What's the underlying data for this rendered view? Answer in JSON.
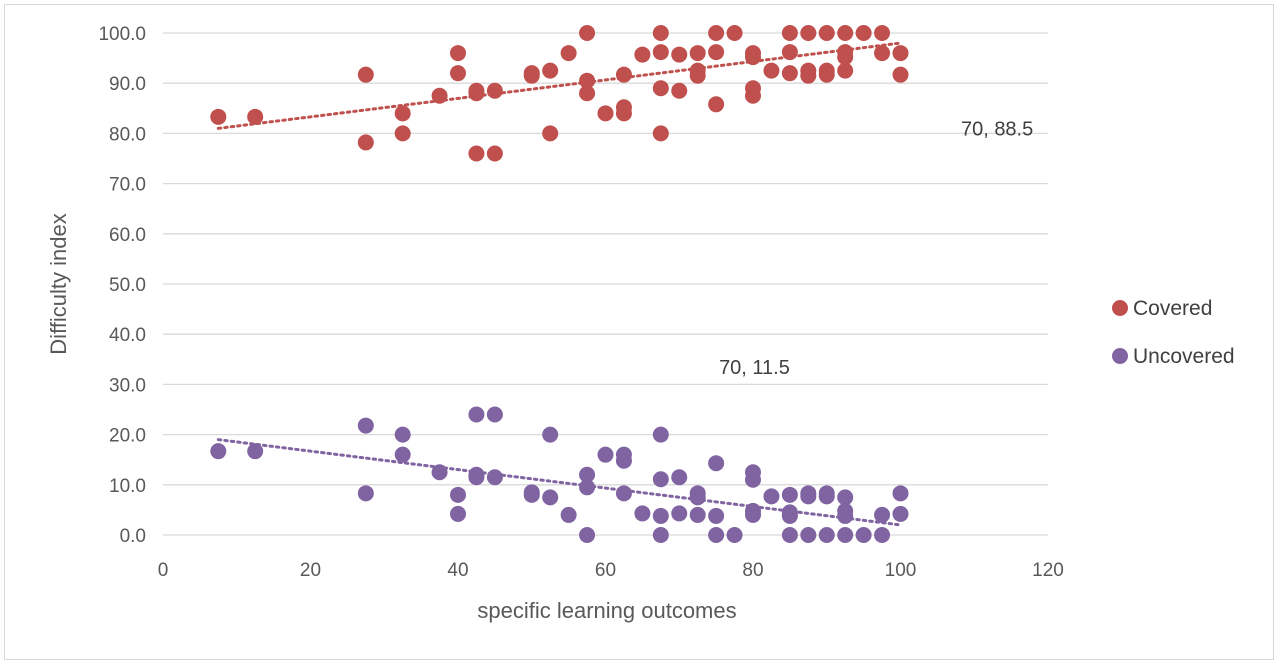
{
  "chart_data": {
    "type": "scatter",
    "title": "",
    "xlabel": "specific learning outcomes",
    "ylabel": "Difficulty index",
    "xlim": [
      0,
      120
    ],
    "ylim": [
      0,
      100
    ],
    "x_ticks": [
      "0",
      "20",
      "40",
      "60",
      "80",
      "100",
      "120"
    ],
    "y_ticks": [
      "0.0",
      "10.0",
      "20.0",
      "30.0",
      "40.0",
      "50.0",
      "60.0",
      "70.0",
      "80.0",
      "90.0",
      "100.0"
    ],
    "grid": "horizontal",
    "legend_position": "right",
    "annotations": [
      {
        "text": "70, 88.5",
        "x": 118,
        "y": 81
      },
      {
        "text": "70, 11.5",
        "x": 85,
        "y": 33.5
      }
    ],
    "series": [
      {
        "name": "Covered",
        "color": "#c0504d",
        "trendline": {
          "x": [
            7.5,
            100
          ],
          "y": [
            81,
            98
          ]
        },
        "points": [
          [
            7.5,
            83.3
          ],
          [
            12.5,
            83.3
          ],
          [
            27.5,
            91.7
          ],
          [
            27.5,
            78.2
          ],
          [
            32.5,
            84
          ],
          [
            32.5,
            80
          ],
          [
            37.5,
            87.5
          ],
          [
            40,
            96
          ],
          [
            40,
            92
          ],
          [
            42.5,
            88
          ],
          [
            42.5,
            88.5
          ],
          [
            42.5,
            76
          ],
          [
            45,
            88.5
          ],
          [
            45,
            76
          ],
          [
            50,
            91.5
          ],
          [
            50,
            92
          ],
          [
            52.5,
            92.5
          ],
          [
            52.5,
            80
          ],
          [
            55,
            96
          ],
          [
            57.5,
            100
          ],
          [
            57.5,
            90.5
          ],
          [
            57.5,
            88
          ],
          [
            60,
            84
          ],
          [
            62.5,
            91.7
          ],
          [
            62.5,
            85.2
          ],
          [
            62.5,
            84
          ],
          [
            65,
            95.7
          ],
          [
            67.5,
            100
          ],
          [
            67.5,
            96.2
          ],
          [
            67.5,
            89
          ],
          [
            67.5,
            80
          ],
          [
            70,
            95.7
          ],
          [
            70,
            88.5
          ],
          [
            72.5,
            96
          ],
          [
            72.5,
            92.5
          ],
          [
            72.5,
            91.5
          ],
          [
            75,
            100
          ],
          [
            75,
            96.2
          ],
          [
            75,
            85.8
          ],
          [
            77.5,
            100
          ],
          [
            80,
            96
          ],
          [
            80,
            95.2
          ],
          [
            80,
            89
          ],
          [
            80,
            87.5
          ],
          [
            82.5,
            92.5
          ],
          [
            85,
            100
          ],
          [
            85,
            96.2
          ],
          [
            85,
            92
          ],
          [
            87.5,
            100
          ],
          [
            87.5,
            92.5
          ],
          [
            87.5,
            91.5
          ],
          [
            90,
            100
          ],
          [
            90,
            92.5
          ],
          [
            90,
            91.7
          ],
          [
            92.5,
            100
          ],
          [
            92.5,
            96.2
          ],
          [
            92.5,
            95.2
          ],
          [
            92.5,
            92.5
          ],
          [
            95,
            100
          ],
          [
            97.5,
            100
          ],
          [
            97.5,
            96
          ],
          [
            100,
            96
          ],
          [
            100,
            91.7
          ]
        ]
      },
      {
        "name": "Uncovered",
        "color": "#8064a2",
        "trendline": {
          "x": [
            7.5,
            100
          ],
          "y": [
            19,
            2
          ]
        },
        "points": [
          [
            7.5,
            16.7
          ],
          [
            12.5,
            16.7
          ],
          [
            27.5,
            21.8
          ],
          [
            27.5,
            8.3
          ],
          [
            32.5,
            20
          ],
          [
            32.5,
            16
          ],
          [
            37.5,
            12.5
          ],
          [
            40,
            8
          ],
          [
            40,
            4.2
          ],
          [
            42.5,
            24
          ],
          [
            42.5,
            12
          ],
          [
            42.5,
            11.5
          ],
          [
            45,
            24
          ],
          [
            45,
            11.5
          ],
          [
            50,
            8.5
          ],
          [
            50,
            8
          ],
          [
            52.5,
            20
          ],
          [
            52.5,
            7.5
          ],
          [
            55,
            4
          ],
          [
            57.5,
            12
          ],
          [
            57.5,
            9.5
          ],
          [
            57.5,
            0
          ],
          [
            60,
            16
          ],
          [
            62.5,
            16
          ],
          [
            62.5,
            14.8
          ],
          [
            62.5,
            8.3
          ],
          [
            65,
            4.3
          ],
          [
            67.5,
            20
          ],
          [
            67.5,
            11.1
          ],
          [
            67.5,
            3.8
          ],
          [
            67.5,
            0
          ],
          [
            70,
            11.5
          ],
          [
            70,
            4.3
          ],
          [
            72.5,
            8.3
          ],
          [
            72.5,
            7.5
          ],
          [
            72.5,
            4
          ],
          [
            75,
            14.3
          ],
          [
            75,
            3.8
          ],
          [
            75,
            0
          ],
          [
            77.5,
            0
          ],
          [
            80,
            12.5
          ],
          [
            80,
            11
          ],
          [
            80,
            4.8
          ],
          [
            80,
            4
          ],
          [
            82.5,
            7.7
          ],
          [
            85,
            8
          ],
          [
            85,
            4.5
          ],
          [
            85,
            3.8
          ],
          [
            85,
            0
          ],
          [
            87.5,
            8.3
          ],
          [
            87.5,
            7.7
          ],
          [
            87.5,
            0
          ],
          [
            90,
            8.3
          ],
          [
            90,
            7.7
          ],
          [
            90,
            0
          ],
          [
            92.5,
            7.5
          ],
          [
            92.5,
            4.8
          ],
          [
            92.5,
            3.8
          ],
          [
            92.5,
            0
          ],
          [
            95,
            0
          ],
          [
            97.5,
            4
          ],
          [
            97.5,
            0
          ],
          [
            100,
            8.3
          ],
          [
            100,
            4.2
          ]
        ]
      }
    ]
  }
}
